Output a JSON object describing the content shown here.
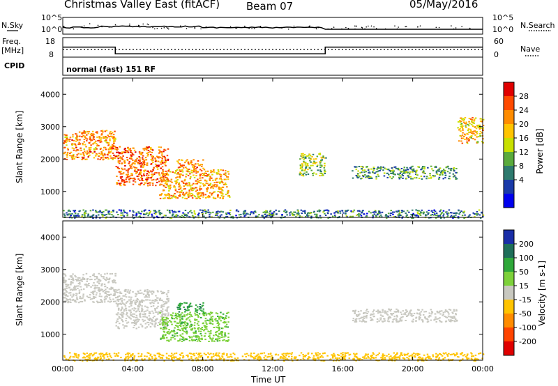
{
  "header": {
    "station": "Christmas Valley East (fitACF)",
    "beam": "Beam 07",
    "date": "05/May/2016"
  },
  "noise_panel": {
    "left_label": "N.Sky",
    "right_label": "N.Search",
    "y_tick_top": "10^5",
    "y_tick_bottom": "10^0",
    "right_tick_top": "10^5",
    "right_tick_bottom": "10^0"
  },
  "freq_panel": {
    "left_label_line1": "Freq.",
    "left_label_line2": "[MHz]",
    "right_label": "Nave",
    "y_ticks": [
      "18",
      "8"
    ],
    "right_ticks": [
      "60",
      "0"
    ]
  },
  "cpid": {
    "label": "CPID",
    "text": "normal (fast) 151 RF"
  },
  "power_panel": {
    "ylabel": "Slant Range [km]",
    "cbar_label": "Power [dB]",
    "cbar_ticks": [
      "28",
      "24",
      "20",
      "16",
      "12",
      "8",
      "4"
    ],
    "cbar_colors": [
      "#e00000",
      "#ff4a00",
      "#ff8c00",
      "#ffc400",
      "#c8e000",
      "#5aaa3c",
      "#2e7a6e",
      "#1a3aa8",
      "#0000ee"
    ]
  },
  "velocity_panel": {
    "ylabel": "Slant Range [km]",
    "cbar_label": "Velocity [m s-1]",
    "cbar_ticks": [
      "200",
      "100",
      "50",
      "15",
      "-15",
      "-50",
      "-100",
      "-200"
    ],
    "cbar_colors": [
      "#1a2ea8",
      "#1f6f5a",
      "#2fa83a",
      "#7dd13a",
      "#c8c8c0",
      "#ffc400",
      "#ff8c00",
      "#ff4400",
      "#e00000"
    ]
  },
  "xaxis": {
    "label": "Time UT",
    "ticks": [
      "00:00",
      "04:00",
      "08:00",
      "12:00",
      "16:00",
      "20:00",
      "00:00"
    ]
  },
  "chart_data": {
    "type": "heatmap",
    "title": "Christmas Valley East (fitACF) Beam 07 05/May/2016",
    "xlabel": "Time UT",
    "ylabel": "Slant Range [km]",
    "x_range_hours": [
      0,
      24
    ],
    "y_range_km": [
      200,
      4500
    ],
    "y_ticks": [
      1000,
      2000,
      3000,
      4000
    ],
    "frequency_MHz": [
      {
        "from_h": 0,
        "to_h": 3,
        "value": 14
      },
      {
        "from_h": 3,
        "to_h": 15,
        "value": 10
      },
      {
        "from_h": 15,
        "to_h": 24,
        "value": 14
      }
    ],
    "power_echo_regions": [
      {
        "t0": 0.0,
        "t1": 3.0,
        "r0": 2000,
        "r1": 2900,
        "power_dB": 24
      },
      {
        "t0": 3.0,
        "t1": 6.0,
        "r0": 1200,
        "r1": 2400,
        "power_dB": 26
      },
      {
        "t0": 5.5,
        "t1": 9.5,
        "r0": 800,
        "r1": 1700,
        "power_dB": 22
      },
      {
        "t0": 6.5,
        "t1": 8.0,
        "r0": 1700,
        "r1": 2000,
        "power_dB": 24
      },
      {
        "t0": 13.5,
        "t1": 15.0,
        "r0": 1500,
        "r1": 2200,
        "power_dB": 14
      },
      {
        "t0": 16.5,
        "t1": 22.5,
        "r0": 1400,
        "r1": 1800,
        "power_dB": 10
      },
      {
        "t0": 22.5,
        "t1": 24.0,
        "r0": 2500,
        "r1": 3300,
        "power_dB": 20
      },
      {
        "t0": 0.0,
        "t1": 24.0,
        "r0": 200,
        "r1": 450,
        "power_dB": 8
      }
    ],
    "velocity_echo_regions": [
      {
        "t0": 0.0,
        "t1": 3.0,
        "r0": 2000,
        "r1": 2900,
        "velocity_ms": 0
      },
      {
        "t0": 3.0,
        "t1": 6.0,
        "r0": 1200,
        "r1": 2400,
        "velocity_ms": 0
      },
      {
        "t0": 5.5,
        "t1": 9.5,
        "r0": 800,
        "r1": 1700,
        "velocity_ms": 40
      },
      {
        "t0": 6.5,
        "t1": 8.0,
        "r0": 1700,
        "r1": 2000,
        "velocity_ms": 90
      },
      {
        "t0": 16.5,
        "t1": 22.5,
        "r0": 1400,
        "r1": 1800,
        "velocity_ms": 0
      },
      {
        "t0": 0.0,
        "t1": 24.0,
        "r0": 200,
        "r1": 450,
        "velocity_ms": -30
      }
    ]
  }
}
